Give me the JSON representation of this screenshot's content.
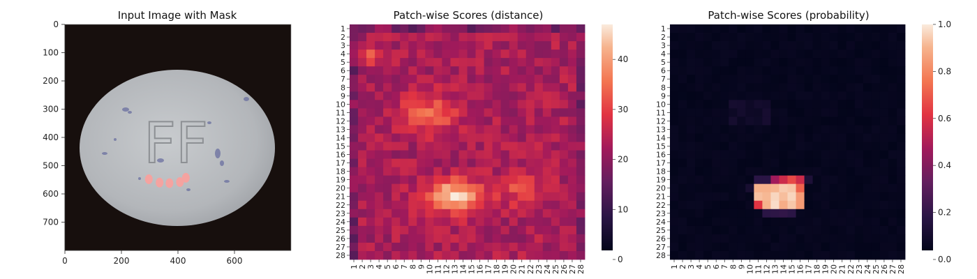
{
  "chart_data": [
    {
      "type": "image",
      "title": "Input Image with Mask",
      "xlim": [
        0,
        800
      ],
      "ylim": [
        800,
        0
      ],
      "xticks": [
        0,
        200,
        400,
        600
      ],
      "yticks": [
        0,
        100,
        200,
        300,
        400,
        500,
        600,
        700
      ],
      "annotations": [
        "FF"
      ],
      "mask_regions": [
        {
          "x": 297,
          "y": 548
        },
        {
          "x": 335,
          "y": 560
        },
        {
          "x": 370,
          "y": 562
        },
        {
          "x": 407,
          "y": 558
        },
        {
          "x": 428,
          "y": 543
        }
      ]
    },
    {
      "type": "heatmap",
      "title": "Patch-wise Scores (distance)",
      "rows": 28,
      "cols": 28,
      "x_tick_labels": [
        "1",
        "2",
        "3",
        "4",
        "5",
        "6",
        "7",
        "8",
        "9",
        "10",
        "11",
        "12",
        "13",
        "14",
        "15",
        "16",
        "17",
        "18",
        "19",
        "20",
        "21",
        "22",
        "23",
        "24",
        "25",
        "26",
        "27",
        "28"
      ],
      "y_tick_labels": [
        "1",
        "2",
        "3",
        "4",
        "5",
        "6",
        "7",
        "8",
        "9",
        "10",
        "11",
        "12",
        "13",
        "14",
        "15",
        "16",
        "17",
        "18",
        "19",
        "20",
        "21",
        "22",
        "23",
        "24",
        "25",
        "26",
        "27",
        "28"
      ],
      "colorbar": {
        "min": 0,
        "max": 47,
        "ticks": [
          0,
          10,
          20,
          30,
          40
        ]
      },
      "baseline": 22,
      "hotspots": [
        {
          "row": 21,
          "col": 13,
          "peak": 47,
          "spread_rows": 1.8,
          "spread_cols": 3.2
        },
        {
          "row": 11,
          "col": 10,
          "peak": 33,
          "spread_rows": 2.2,
          "spread_cols": 3.5
        },
        {
          "row": 4,
          "col": 3,
          "peak": 30,
          "spread_rows": 1.2,
          "spread_cols": 1.5
        },
        {
          "row": 20,
          "col": 21,
          "peak": 31,
          "spread_rows": 2.0,
          "spread_cols": 2.5
        }
      ],
      "colorscale": "rocket"
    },
    {
      "type": "heatmap",
      "title": "Patch-wise Scores (probability)",
      "rows": 28,
      "cols": 28,
      "x_tick_labels": [
        "1",
        "2",
        "3",
        "4",
        "5",
        "6",
        "7",
        "8",
        "9",
        "10",
        "11",
        "12",
        "13",
        "14",
        "15",
        "16",
        "17",
        "18",
        "19",
        "20",
        "21",
        "22",
        "23",
        "24",
        "25",
        "26",
        "27",
        "28"
      ],
      "y_tick_labels": [
        "1",
        "2",
        "3",
        "4",
        "5",
        "6",
        "7",
        "8",
        "9",
        "10",
        "11",
        "12",
        "13",
        "14",
        "15",
        "16",
        "17",
        "18",
        "19",
        "20",
        "21",
        "22",
        "23",
        "24",
        "25",
        "26",
        "27",
        "28"
      ],
      "colorbar": {
        "min": 0.0,
        "max": 1.0,
        "ticks": [
          "0.0",
          "0.2",
          "0.4",
          "0.6",
          "0.8",
          "1.0"
        ]
      },
      "high_region": {
        "rows": [
          19,
          22
        ],
        "cols": [
          11,
          16
        ]
      },
      "colorscale": "rocket"
    }
  ]
}
